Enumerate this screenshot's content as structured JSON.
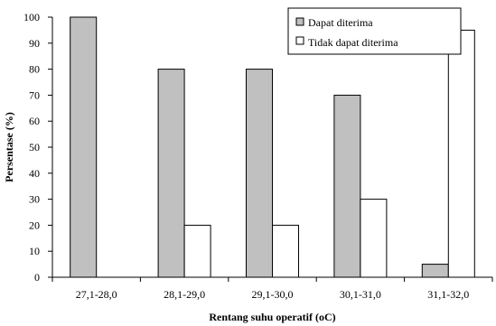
{
  "chart_data": {
    "type": "bar",
    "categories": [
      "27,1-28,0",
      "28,1-29,0",
      "29,1-30,0",
      "30,1-31,0",
      "31,1-32,0"
    ],
    "series": [
      {
        "name": "Dapat diterima",
        "values": [
          100,
          80,
          80,
          70,
          5
        ],
        "color": "#c0c0c0"
      },
      {
        "name": "Tidak dapat diterima",
        "values": [
          0,
          20,
          20,
          30,
          95
        ],
        "color": "#ffffff"
      }
    ],
    "xlabel": "Rentang suhu operatif (oC)",
    "ylabel": "Persentase (%)",
    "ylim": [
      0,
      100
    ],
    "yticks": [
      "0",
      "10",
      "20",
      "30",
      "40",
      "50",
      "60",
      "70",
      "80",
      "90",
      "100"
    ],
    "grid": false,
    "legend_position": "top-right"
  }
}
